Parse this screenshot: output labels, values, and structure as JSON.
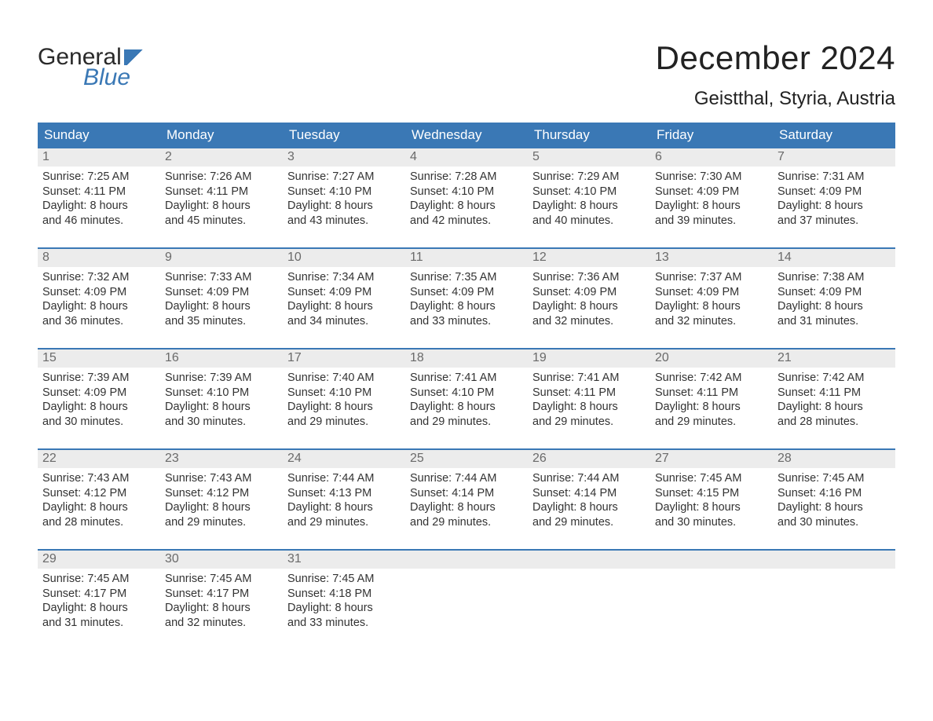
{
  "brand": {
    "line1": "General",
    "line2": "Blue"
  },
  "title": "December 2024",
  "location": "Geistthal, Styria, Austria",
  "colors": {
    "header_bg": "#3a78b5",
    "header_text": "#ffffff",
    "daynum_bg": "#ececec",
    "daynum_text": "#6a6a6a",
    "body_text": "#333333",
    "rule": "#3a78b5",
    "page_bg": "#ffffff"
  },
  "typography": {
    "title_fontsize": 42,
    "location_fontsize": 24,
    "dow_fontsize": 17,
    "body_fontsize": 14.5
  },
  "days_of_week": [
    "Sunday",
    "Monday",
    "Tuesday",
    "Wednesday",
    "Thursday",
    "Friday",
    "Saturday"
  ],
  "weeks": [
    [
      {
        "n": "1",
        "sunrise": "Sunrise: 7:25 AM",
        "sunset": "Sunset: 4:11 PM",
        "d1": "Daylight: 8 hours",
        "d2": "and 46 minutes."
      },
      {
        "n": "2",
        "sunrise": "Sunrise: 7:26 AM",
        "sunset": "Sunset: 4:11 PM",
        "d1": "Daylight: 8 hours",
        "d2": "and 45 minutes."
      },
      {
        "n": "3",
        "sunrise": "Sunrise: 7:27 AM",
        "sunset": "Sunset: 4:10 PM",
        "d1": "Daylight: 8 hours",
        "d2": "and 43 minutes."
      },
      {
        "n": "4",
        "sunrise": "Sunrise: 7:28 AM",
        "sunset": "Sunset: 4:10 PM",
        "d1": "Daylight: 8 hours",
        "d2": "and 42 minutes."
      },
      {
        "n": "5",
        "sunrise": "Sunrise: 7:29 AM",
        "sunset": "Sunset: 4:10 PM",
        "d1": "Daylight: 8 hours",
        "d2": "and 40 minutes."
      },
      {
        "n": "6",
        "sunrise": "Sunrise: 7:30 AM",
        "sunset": "Sunset: 4:09 PM",
        "d1": "Daylight: 8 hours",
        "d2": "and 39 minutes."
      },
      {
        "n": "7",
        "sunrise": "Sunrise: 7:31 AM",
        "sunset": "Sunset: 4:09 PM",
        "d1": "Daylight: 8 hours",
        "d2": "and 37 minutes."
      }
    ],
    [
      {
        "n": "8",
        "sunrise": "Sunrise: 7:32 AM",
        "sunset": "Sunset: 4:09 PM",
        "d1": "Daylight: 8 hours",
        "d2": "and 36 minutes."
      },
      {
        "n": "9",
        "sunrise": "Sunrise: 7:33 AM",
        "sunset": "Sunset: 4:09 PM",
        "d1": "Daylight: 8 hours",
        "d2": "and 35 minutes."
      },
      {
        "n": "10",
        "sunrise": "Sunrise: 7:34 AM",
        "sunset": "Sunset: 4:09 PM",
        "d1": "Daylight: 8 hours",
        "d2": "and 34 minutes."
      },
      {
        "n": "11",
        "sunrise": "Sunrise: 7:35 AM",
        "sunset": "Sunset: 4:09 PM",
        "d1": "Daylight: 8 hours",
        "d2": "and 33 minutes."
      },
      {
        "n": "12",
        "sunrise": "Sunrise: 7:36 AM",
        "sunset": "Sunset: 4:09 PM",
        "d1": "Daylight: 8 hours",
        "d2": "and 32 minutes."
      },
      {
        "n": "13",
        "sunrise": "Sunrise: 7:37 AM",
        "sunset": "Sunset: 4:09 PM",
        "d1": "Daylight: 8 hours",
        "d2": "and 32 minutes."
      },
      {
        "n": "14",
        "sunrise": "Sunrise: 7:38 AM",
        "sunset": "Sunset: 4:09 PM",
        "d1": "Daylight: 8 hours",
        "d2": "and 31 minutes."
      }
    ],
    [
      {
        "n": "15",
        "sunrise": "Sunrise: 7:39 AM",
        "sunset": "Sunset: 4:09 PM",
        "d1": "Daylight: 8 hours",
        "d2": "and 30 minutes."
      },
      {
        "n": "16",
        "sunrise": "Sunrise: 7:39 AM",
        "sunset": "Sunset: 4:10 PM",
        "d1": "Daylight: 8 hours",
        "d2": "and 30 minutes."
      },
      {
        "n": "17",
        "sunrise": "Sunrise: 7:40 AM",
        "sunset": "Sunset: 4:10 PM",
        "d1": "Daylight: 8 hours",
        "d2": "and 29 minutes."
      },
      {
        "n": "18",
        "sunrise": "Sunrise: 7:41 AM",
        "sunset": "Sunset: 4:10 PM",
        "d1": "Daylight: 8 hours",
        "d2": "and 29 minutes."
      },
      {
        "n": "19",
        "sunrise": "Sunrise: 7:41 AM",
        "sunset": "Sunset: 4:11 PM",
        "d1": "Daylight: 8 hours",
        "d2": "and 29 minutes."
      },
      {
        "n": "20",
        "sunrise": "Sunrise: 7:42 AM",
        "sunset": "Sunset: 4:11 PM",
        "d1": "Daylight: 8 hours",
        "d2": "and 29 minutes."
      },
      {
        "n": "21",
        "sunrise": "Sunrise: 7:42 AM",
        "sunset": "Sunset: 4:11 PM",
        "d1": "Daylight: 8 hours",
        "d2": "and 28 minutes."
      }
    ],
    [
      {
        "n": "22",
        "sunrise": "Sunrise: 7:43 AM",
        "sunset": "Sunset: 4:12 PM",
        "d1": "Daylight: 8 hours",
        "d2": "and 28 minutes."
      },
      {
        "n": "23",
        "sunrise": "Sunrise: 7:43 AM",
        "sunset": "Sunset: 4:12 PM",
        "d1": "Daylight: 8 hours",
        "d2": "and 29 minutes."
      },
      {
        "n": "24",
        "sunrise": "Sunrise: 7:44 AM",
        "sunset": "Sunset: 4:13 PM",
        "d1": "Daylight: 8 hours",
        "d2": "and 29 minutes."
      },
      {
        "n": "25",
        "sunrise": "Sunrise: 7:44 AM",
        "sunset": "Sunset: 4:14 PM",
        "d1": "Daylight: 8 hours",
        "d2": "and 29 minutes."
      },
      {
        "n": "26",
        "sunrise": "Sunrise: 7:44 AM",
        "sunset": "Sunset: 4:14 PM",
        "d1": "Daylight: 8 hours",
        "d2": "and 29 minutes."
      },
      {
        "n": "27",
        "sunrise": "Sunrise: 7:45 AM",
        "sunset": "Sunset: 4:15 PM",
        "d1": "Daylight: 8 hours",
        "d2": "and 30 minutes."
      },
      {
        "n": "28",
        "sunrise": "Sunrise: 7:45 AM",
        "sunset": "Sunset: 4:16 PM",
        "d1": "Daylight: 8 hours",
        "d2": "and 30 minutes."
      }
    ],
    [
      {
        "n": "29",
        "sunrise": "Sunrise: 7:45 AM",
        "sunset": "Sunset: 4:17 PM",
        "d1": "Daylight: 8 hours",
        "d2": "and 31 minutes."
      },
      {
        "n": "30",
        "sunrise": "Sunrise: 7:45 AM",
        "sunset": "Sunset: 4:17 PM",
        "d1": "Daylight: 8 hours",
        "d2": "and 32 minutes."
      },
      {
        "n": "31",
        "sunrise": "Sunrise: 7:45 AM",
        "sunset": "Sunset: 4:18 PM",
        "d1": "Daylight: 8 hours",
        "d2": "and 33 minutes."
      },
      {
        "empty": true
      },
      {
        "empty": true
      },
      {
        "empty": true
      },
      {
        "empty": true
      }
    ]
  ]
}
